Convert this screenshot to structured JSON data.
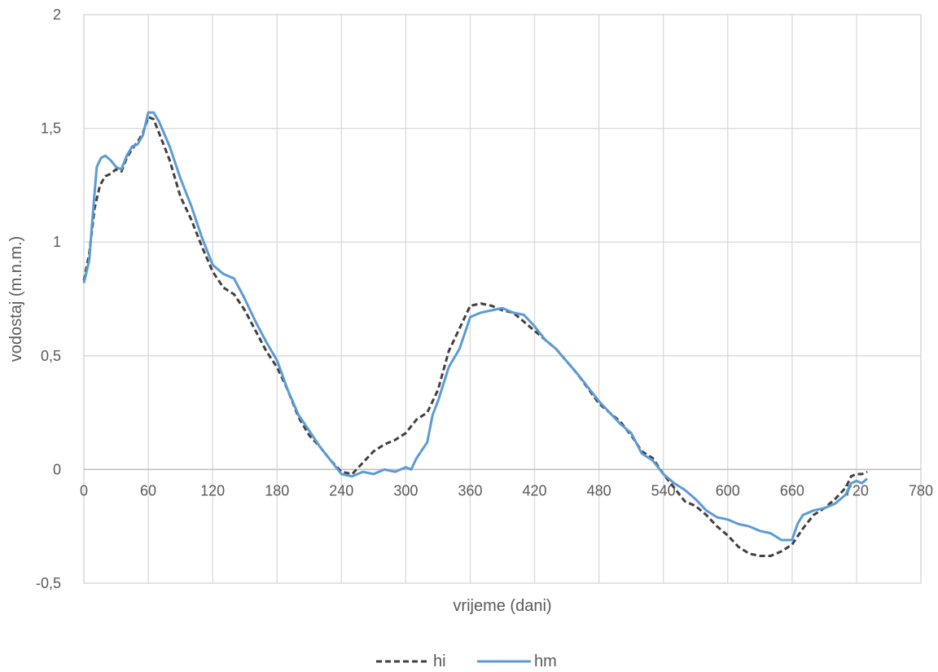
{
  "chart_data": {
    "type": "line",
    "title": "",
    "xlabel": "vrijeme (dani)",
    "ylabel": "vodostaj (m.n.m.)",
    "xlim": [
      0,
      780
    ],
    "ylim": [
      -0.5,
      2
    ],
    "x_ticks": [
      "0",
      "60",
      "120",
      "180",
      "240",
      "300",
      "360",
      "420",
      "480",
      "540",
      "600",
      "660",
      "720",
      "780"
    ],
    "y_ticks": [
      "-0,5",
      "0",
      "0,5",
      "1",
      "1,5",
      "2"
    ],
    "grid": true,
    "legend_position": "bottom-center",
    "series": [
      {
        "name": "hi",
        "color": "#404040",
        "dash": "dashed",
        "points": [
          [
            0,
            0.83
          ],
          [
            5,
            0.95
          ],
          [
            10,
            1.15
          ],
          [
            15,
            1.25
          ],
          [
            20,
            1.29
          ],
          [
            25,
            1.3
          ],
          [
            30,
            1.32
          ],
          [
            35,
            1.31
          ],
          [
            40,
            1.37
          ],
          [
            45,
            1.41
          ],
          [
            50,
            1.44
          ],
          [
            55,
            1.48
          ],
          [
            60,
            1.55
          ],
          [
            65,
            1.54
          ],
          [
            70,
            1.48
          ],
          [
            80,
            1.36
          ],
          [
            90,
            1.2
          ],
          [
            100,
            1.1
          ],
          [
            110,
            0.98
          ],
          [
            120,
            0.87
          ],
          [
            130,
            0.8
          ],
          [
            140,
            0.77
          ],
          [
            150,
            0.7
          ],
          [
            160,
            0.61
          ],
          [
            170,
            0.52
          ],
          [
            180,
            0.45
          ],
          [
            190,
            0.35
          ],
          [
            200,
            0.23
          ],
          [
            210,
            0.15
          ],
          [
            220,
            0.1
          ],
          [
            230,
            0.04
          ],
          [
            240,
            -0.01
          ],
          [
            250,
            -0.02
          ],
          [
            260,
            0.03
          ],
          [
            270,
            0.08
          ],
          [
            280,
            0.11
          ],
          [
            290,
            0.13
          ],
          [
            300,
            0.16
          ],
          [
            310,
            0.22
          ],
          [
            320,
            0.25
          ],
          [
            330,
            0.35
          ],
          [
            340,
            0.52
          ],
          [
            350,
            0.62
          ],
          [
            360,
            0.72
          ],
          [
            370,
            0.73
          ],
          [
            380,
            0.72
          ],
          [
            390,
            0.7
          ],
          [
            400,
            0.69
          ],
          [
            410,
            0.65
          ],
          [
            420,
            0.61
          ],
          [
            440,
            0.53
          ],
          [
            460,
            0.42
          ],
          [
            480,
            0.29
          ],
          [
            500,
            0.21
          ],
          [
            510,
            0.15
          ],
          [
            520,
            0.08
          ],
          [
            530,
            0.05
          ],
          [
            540,
            -0.02
          ],
          [
            550,
            -0.08
          ],
          [
            560,
            -0.14
          ],
          [
            570,
            -0.16
          ],
          [
            580,
            -0.2
          ],
          [
            590,
            -0.25
          ],
          [
            600,
            -0.29
          ],
          [
            610,
            -0.34
          ],
          [
            620,
            -0.37
          ],
          [
            630,
            -0.38
          ],
          [
            640,
            -0.38
          ],
          [
            650,
            -0.36
          ],
          [
            660,
            -0.33
          ],
          [
            670,
            -0.26
          ],
          [
            680,
            -0.2
          ],
          [
            690,
            -0.17
          ],
          [
            700,
            -0.13
          ],
          [
            710,
            -0.08
          ],
          [
            715,
            -0.03
          ],
          [
            720,
            -0.02
          ],
          [
            725,
            -0.02
          ],
          [
            730,
            -0.01
          ]
        ]
      },
      {
        "name": "hm",
        "color": "#5b9bd5",
        "dash": "solid",
        "points": [
          [
            0,
            0.82
          ],
          [
            5,
            0.92
          ],
          [
            8,
            1.1
          ],
          [
            12,
            1.33
          ],
          [
            16,
            1.37
          ],
          [
            20,
            1.38
          ],
          [
            25,
            1.36
          ],
          [
            30,
            1.33
          ],
          [
            35,
            1.32
          ],
          [
            40,
            1.38
          ],
          [
            45,
            1.42
          ],
          [
            50,
            1.43
          ],
          [
            55,
            1.47
          ],
          [
            60,
            1.57
          ],
          [
            65,
            1.57
          ],
          [
            70,
            1.53
          ],
          [
            80,
            1.42
          ],
          [
            90,
            1.28
          ],
          [
            100,
            1.16
          ],
          [
            110,
            1.02
          ],
          [
            120,
            0.9
          ],
          [
            130,
            0.86
          ],
          [
            140,
            0.84
          ],
          [
            150,
            0.75
          ],
          [
            160,
            0.65
          ],
          [
            170,
            0.56
          ],
          [
            180,
            0.48
          ],
          [
            190,
            0.35
          ],
          [
            200,
            0.24
          ],
          [
            210,
            0.17
          ],
          [
            220,
            0.1
          ],
          [
            230,
            0.04
          ],
          [
            240,
            -0.02
          ],
          [
            250,
            -0.03
          ],
          [
            260,
            -0.01
          ],
          [
            270,
            -0.02
          ],
          [
            280,
            0.0
          ],
          [
            290,
            -0.01
          ],
          [
            300,
            0.01
          ],
          [
            305,
            0.0
          ],
          [
            310,
            0.05
          ],
          [
            320,
            0.12
          ],
          [
            325,
            0.24
          ],
          [
            330,
            0.3
          ],
          [
            340,
            0.45
          ],
          [
            350,
            0.53
          ],
          [
            355,
            0.6
          ],
          [
            360,
            0.67
          ],
          [
            370,
            0.69
          ],
          [
            380,
            0.7
          ],
          [
            390,
            0.71
          ],
          [
            400,
            0.69
          ],
          [
            410,
            0.68
          ],
          [
            420,
            0.63
          ],
          [
            430,
            0.57
          ],
          [
            440,
            0.53
          ],
          [
            460,
            0.42
          ],
          [
            480,
            0.3
          ],
          [
            500,
            0.2
          ],
          [
            510,
            0.16
          ],
          [
            520,
            0.07
          ],
          [
            530,
            0.04
          ],
          [
            540,
            -0.02
          ],
          [
            550,
            -0.06
          ],
          [
            560,
            -0.09
          ],
          [
            570,
            -0.13
          ],
          [
            580,
            -0.18
          ],
          [
            590,
            -0.21
          ],
          [
            600,
            -0.22
          ],
          [
            610,
            -0.24
          ],
          [
            620,
            -0.25
          ],
          [
            630,
            -0.27
          ],
          [
            640,
            -0.28
          ],
          [
            650,
            -0.31
          ],
          [
            660,
            -0.31
          ],
          [
            665,
            -0.24
          ],
          [
            670,
            -0.2
          ],
          [
            680,
            -0.18
          ],
          [
            690,
            -0.17
          ],
          [
            700,
            -0.15
          ],
          [
            710,
            -0.11
          ],
          [
            715,
            -0.06
          ],
          [
            720,
            -0.05
          ],
          [
            725,
            -0.06
          ],
          [
            730,
            -0.04
          ]
        ]
      }
    ]
  }
}
